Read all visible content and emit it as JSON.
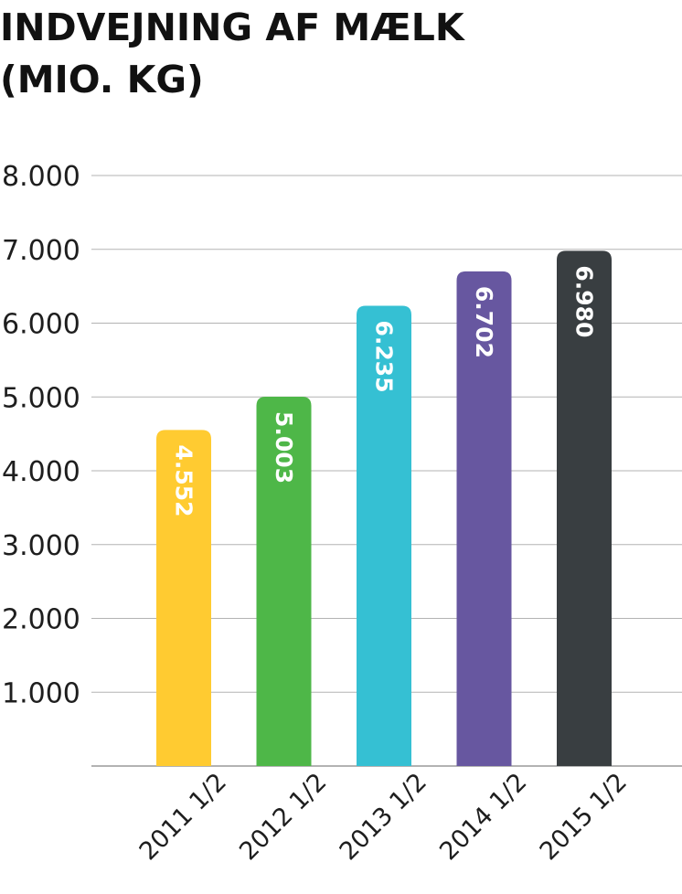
{
  "chart_data": {
    "type": "bar",
    "title_lines": [
      "INDVEJNING AF MÆLK",
      "(MIO. KG)"
    ],
    "categories": [
      "2011 1/2",
      "2012 1/2",
      "2013 1/2",
      "2014 1/2",
      "2015 1/2"
    ],
    "values": [
      4552,
      5003,
      6235,
      6702,
      6980
    ],
    "value_labels": [
      "4.552",
      "5.003",
      "6.235",
      "6.702",
      "6.980"
    ],
    "bar_colors": [
      "#ffcb31",
      "#4eb748",
      "#35c0d3",
      "#6757a0",
      "#393e41"
    ],
    "y_ticks": [
      {
        "value": 1000,
        "label": "1.000"
      },
      {
        "value": 2000,
        "label": "2.000"
      },
      {
        "value": 3000,
        "label": "3.000"
      },
      {
        "value": 4000,
        "label": "4.000"
      },
      {
        "value": 5000,
        "label": "5.000"
      },
      {
        "value": 6000,
        "label": "6.000"
      },
      {
        "value": 7000,
        "label": "7.000"
      },
      {
        "value": 8000,
        "label": "8.000"
      }
    ],
    "ylim": [
      0,
      8000
    ],
    "grid": true,
    "legend": "none"
  }
}
